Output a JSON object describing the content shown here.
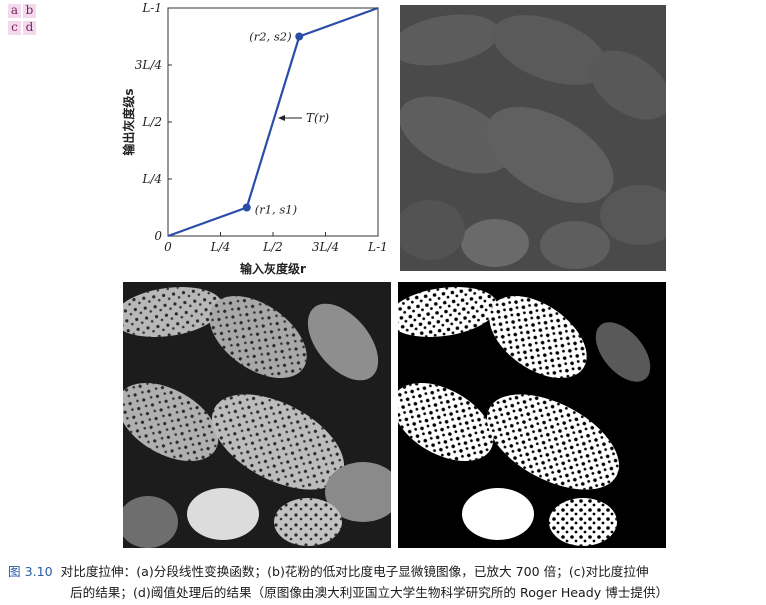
{
  "panel_key": [
    "a",
    "b",
    "c",
    "d"
  ],
  "chart_data": {
    "type": "line",
    "x": [
      0,
      0.25,
      0.5,
      0.75,
      1
    ],
    "series": [
      {
        "values": [
          0,
          0.125,
          0.5,
          0.875,
          1
        ],
        "points": [
          [
            0,
            0
          ],
          [
            0.375,
            0.125
          ],
          [
            0.625,
            0.875
          ],
          [
            1,
            1
          ]
        ]
      }
    ],
    "xlabel": "输入灰度级r",
    "ylabel": "输出灰度级s",
    "xticks": [
      "0",
      "L/4",
      "L/2",
      "3L/4",
      "L-1"
    ],
    "yticks": [
      "0",
      "L/4",
      "L/2",
      "3L/4",
      "L-1"
    ],
    "xlim": [
      0,
      1
    ],
    "ylim": [
      0,
      1
    ],
    "annotations": {
      "p1": "(r1, s1)",
      "p2": "(r2, s2)",
      "curve": "T(r)"
    },
    "grid": false,
    "line_color": "#2a4ea8"
  },
  "photos": {
    "b": {
      "tone": "low-contrast"
    },
    "c": {
      "tone": "contrast-stretched"
    },
    "d": {
      "tone": "thresholded"
    }
  },
  "caption": {
    "label": "图 3.10",
    "line1": "对比度拉伸：(a)分段线性变换函数；(b)花粉的低对比度电子显微镜图像，已放大 700 倍；(c)对比度拉伸",
    "line2": "后的结果；(d)阈值处理后的结果（原图像由澳大利亚国立大学生物科学研究所的 Roger Heady 博士提供）"
  }
}
